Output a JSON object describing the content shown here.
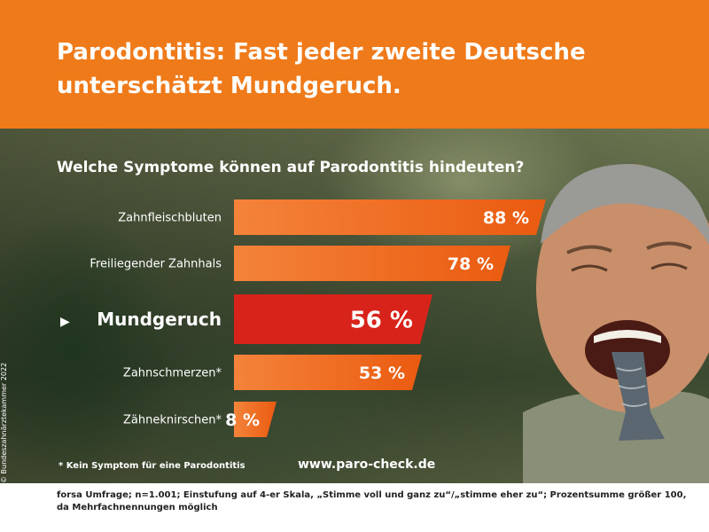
{
  "title": "Parodontitis: Fast jeder zweite Deutsche unterschätzt Mundgeruch.",
  "footnote": "* Kein Symptom für eine Parodontitis",
  "website": "www.paro-check.de",
  "copyright": "© Bundeszahnärztekammer 2022",
  "source": "forsa Umfrage; n=1.001; Einstufung auf 4-er Skala, „Stimme voll und ganz zu“/„stimme eher zu“; Prozentsumme größer 100, da Mehrfachnennungen möglich",
  "colors": {
    "header": "#ef7a1a",
    "bar": "#ef6b16",
    "bar_highlight": "#d8231a",
    "text_on_photo": "#ffffff"
  },
  "chart_data": {
    "type": "bar",
    "orientation": "horizontal",
    "title": "Welche Symptome können auf Parodontitis hindeuten?",
    "categories": [
      "Zahnfleischbluten",
      "Freiliegender Zahnhals",
      "Mundgeruch",
      "Zahnschmerzen*",
      "Zähneknirschen*"
    ],
    "values": [
      88,
      78,
      56,
      53,
      8
    ],
    "value_labels": [
      "88 %",
      "78 %",
      "56 %",
      "53 %",
      "8 %"
    ],
    "highlighted": "Mundgeruch",
    "highlight_marker": "▶",
    "unit": "%",
    "xlim": [
      0,
      100
    ],
    "grid": false,
    "legend": "none"
  }
}
